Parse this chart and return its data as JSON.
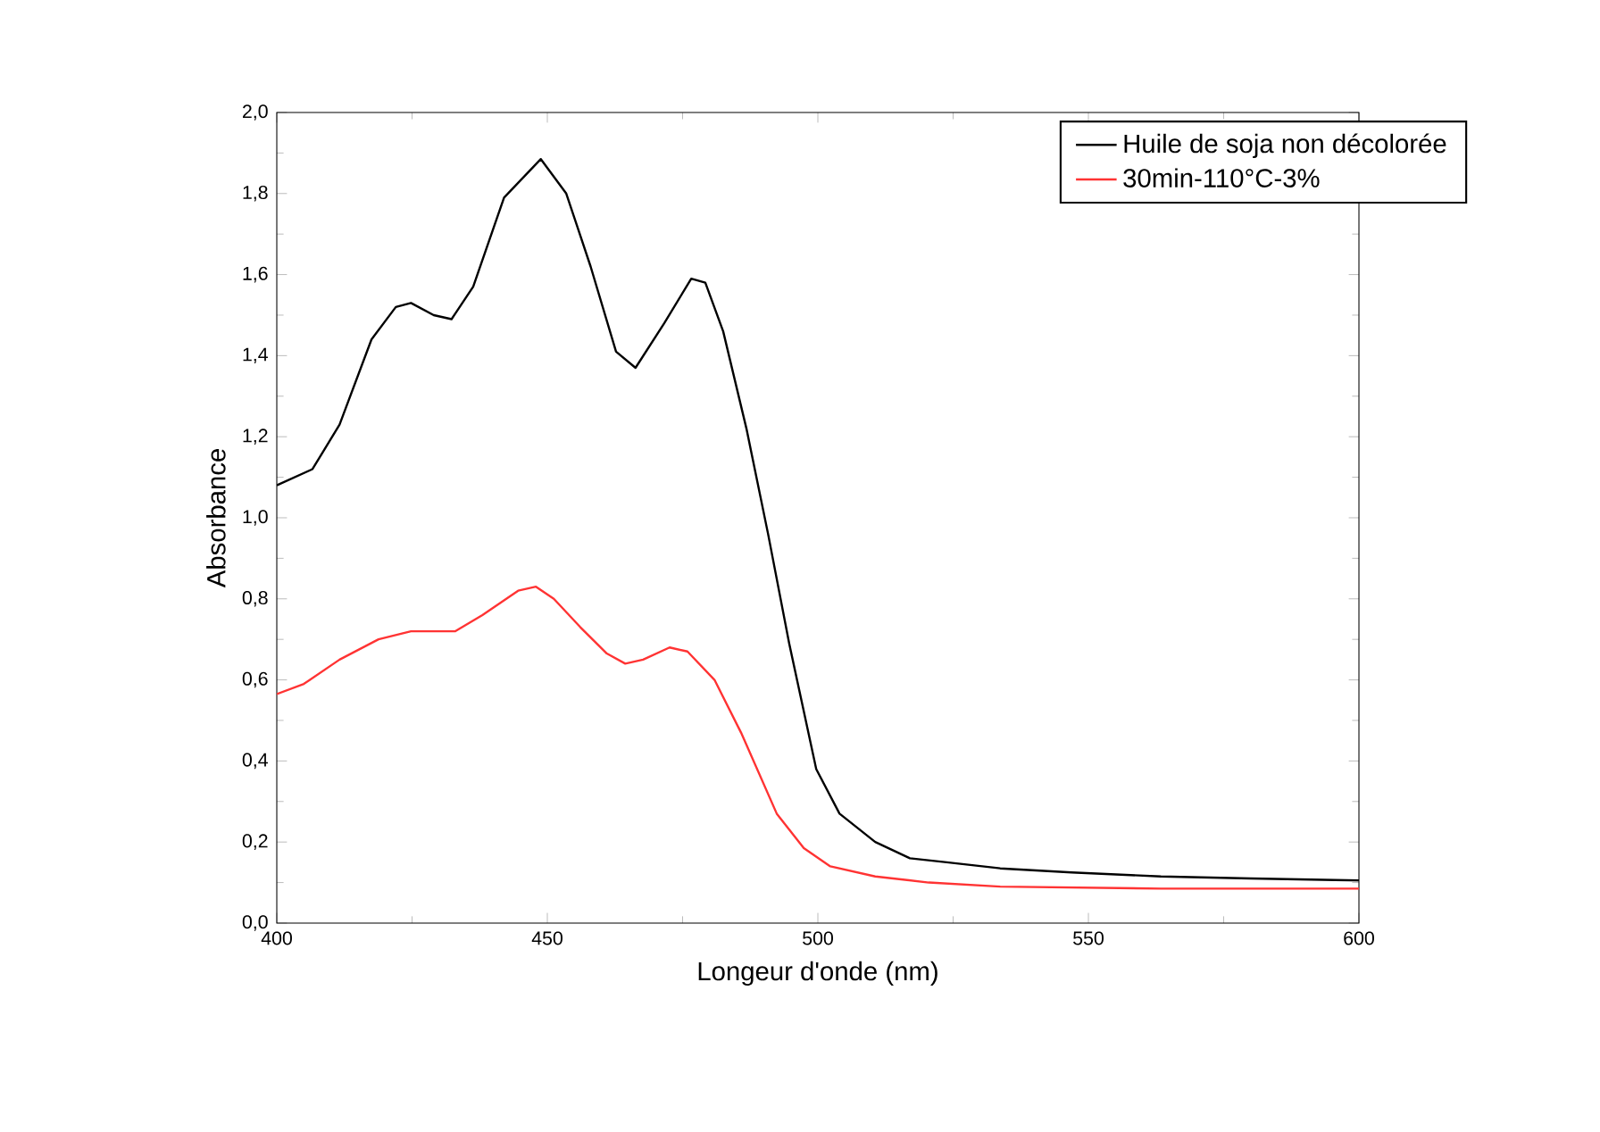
{
  "chart_data": {
    "type": "line",
    "xlabel": "Longeur d'onde (nm)",
    "ylabel": "Absorbance",
    "xlim": [
      400,
      600
    ],
    "ylim": [
      0,
      2
    ],
    "xticks": [
      400,
      450,
      500,
      550,
      600
    ],
    "yticks": [
      {
        "value": 0,
        "label": "0,0"
      },
      {
        "value": 0.2,
        "label": "0,2"
      },
      {
        "value": 0.4,
        "label": "0,4"
      },
      {
        "value": 0.6,
        "label": "0,6"
      },
      {
        "value": 0.8,
        "label": "0,8"
      },
      {
        "value": 1.0,
        "label": "1,0"
      },
      {
        "value": 1.2,
        "label": "1,2"
      },
      {
        "value": 1.4,
        "label": "1,4"
      },
      {
        "value": 1.6,
        "label": "1,6"
      },
      {
        "value": 1.8,
        "label": "1,8"
      },
      {
        "value": 2.0,
        "label": "2,0"
      }
    ],
    "legend": "top right",
    "grid": false,
    "marker": "none",
    "line_style": "solid",
    "series": [
      {
        "name": "Huile de soja non décolorée",
        "color": "#000000",
        "x": [
          400,
          406.6,
          411.6,
          417.5,
          422,
          424.8,
          429,
          432.3,
          436.3,
          442,
          448.8,
          453.5,
          458,
          462.7,
          466.3,
          471.6,
          476.6,
          479.2,
          482.5,
          486.8,
          490.8,
          494.7,
          499.7,
          504,
          510.6,
          517,
          523.8,
          533.7,
          546.9,
          563.4,
          580,
          600
        ],
        "values": [
          1.08,
          1.12,
          1.23,
          1.44,
          1.52,
          1.53,
          1.5,
          1.49,
          1.57,
          1.79,
          1.885,
          1.8,
          1.62,
          1.41,
          1.37,
          1.48,
          1.59,
          1.58,
          1.46,
          1.22,
          0.96,
          0.69,
          0.38,
          0.27,
          0.2,
          0.16,
          0.15,
          0.135,
          0.125,
          0.115,
          0.11,
          0.105
        ]
      },
      {
        "name": "30min-110°C-3%",
        "color": "#ff3333",
        "x": [
          400,
          405,
          411.6,
          418.8,
          424.8,
          433,
          438,
          444.6,
          447.9,
          451.2,
          456.1,
          461,
          464.4,
          467.7,
          472.6,
          475.9,
          480.9,
          485.8,
          492.4,
          497.4,
          502.3,
          510.6,
          520.5,
          533.7,
          563.4,
          600
        ],
        "values": [
          0.565,
          0.59,
          0.65,
          0.7,
          0.72,
          0.72,
          0.76,
          0.82,
          0.83,
          0.8,
          0.73,
          0.665,
          0.64,
          0.65,
          0.68,
          0.67,
          0.6,
          0.47,
          0.27,
          0.185,
          0.14,
          0.115,
          0.1,
          0.09,
          0.085,
          0.085
        ]
      }
    ]
  }
}
